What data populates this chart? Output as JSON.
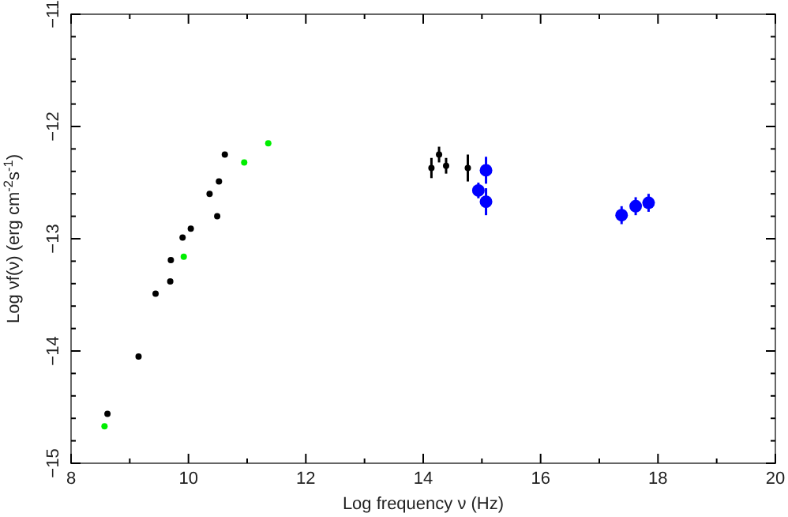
{
  "chart_data": {
    "type": "scatter",
    "xlabel": "Log frequency ν (Hz)",
    "ylabel": "Log νf(ν) (erg cm$^{-2}$s$^{-1}$)",
    "xlim": [
      8,
      20
    ],
    "ylim": [
      -15,
      -11
    ],
    "xticks": [
      8,
      {
        "value": 9,
        "label": null
      },
      10,
      {
        "value": 11,
        "label": null
      },
      12,
      {
        "value": 13,
        "label": null
      },
      14,
      {
        "value": 15,
        "label": null
      },
      16,
      {
        "value": 17,
        "label": null
      },
      18,
      {
        "value": 19,
        "label": null
      },
      20
    ],
    "yticks": [
      {
        "value": -15,
        "label": "−15"
      },
      {
        "value": -14.8,
        "label": null
      },
      {
        "value": -14.6,
        "label": null
      },
      {
        "value": -14.4,
        "label": null
      },
      {
        "value": -14.2,
        "label": null
      },
      {
        "value": -14,
        "label": "−14"
      },
      {
        "value": -13.8,
        "label": null
      },
      {
        "value": -13.6,
        "label": null
      },
      {
        "value": -13.4,
        "label": null
      },
      {
        "value": -13.2,
        "label": null
      },
      {
        "value": -13,
        "label": "−13"
      },
      {
        "value": -12.8,
        "label": null
      },
      {
        "value": -12.6,
        "label": null
      },
      {
        "value": -12.4,
        "label": null
      },
      {
        "value": -12.2,
        "label": null
      },
      {
        "value": -12,
        "label": "−12"
      },
      {
        "value": -11.8,
        "label": null
      },
      {
        "value": -11.6,
        "label": null
      },
      {
        "value": -11.4,
        "label": null
      },
      {
        "value": -11.2,
        "label": null
      },
      {
        "value": -11,
        "label": "−11"
      }
    ],
    "marker": "circle",
    "grid": false,
    "series": [
      {
        "color": "#000000",
        "x": [
          8.62,
          9.15,
          9.44,
          9.69,
          9.7,
          9.9,
          10.04,
          10.36,
          10.49,
          10.52,
          10.62
        ],
        "values": [
          -14.56,
          -14.05,
          -13.49,
          -13.38,
          -13.19,
          -12.99,
          -12.91,
          -12.6,
          -12.8,
          -12.49,
          -12.25
        ]
      },
      {
        "color": "#00ee00",
        "x": [
          8.57,
          9.92,
          10.95,
          11.36
        ],
        "values": [
          -14.67,
          -13.16,
          -12.32,
          -12.15
        ]
      },
      {
        "color": "#000000",
        "x": [
          14.14,
          14.27,
          14.39,
          14.76
        ],
        "values": [
          -12.37,
          -12.25,
          -12.35,
          -12.37
        ],
        "errors": [
          0.09,
          0.07,
          0.07,
          0.12
        ]
      },
      {
        "color": "#0000ff",
        "x": [
          14.94,
          15.07,
          15.07,
          17.38,
          17.62,
          17.84
        ],
        "values": [
          -12.57,
          -12.39,
          -12.67,
          -12.79,
          -12.71,
          -12.68
        ],
        "errors": [
          0.07,
          0.12,
          0.12,
          0.08,
          0.08,
          0.08
        ]
      }
    ]
  }
}
